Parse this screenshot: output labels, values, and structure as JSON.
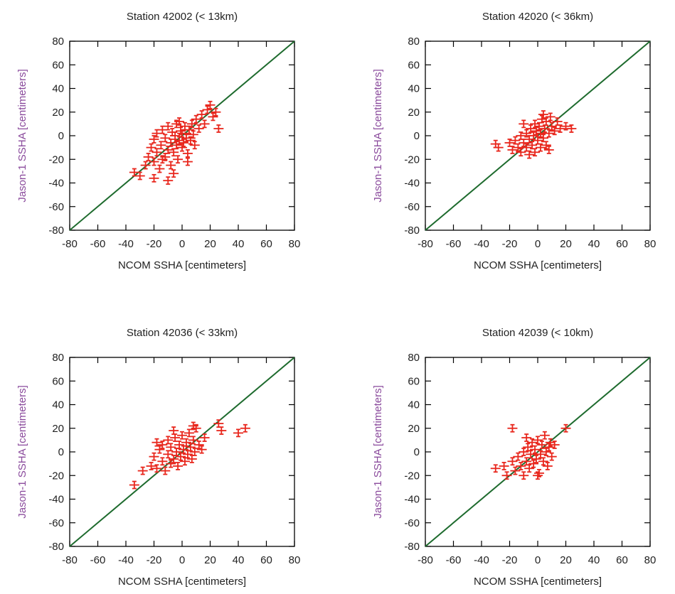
{
  "chart_data": [
    {
      "type": "scatter",
      "title": "Station 42002 (< 13km)",
      "xlabel": "NCOM SSHA [centimeters]",
      "ylabel": "Jason-1 SSHA [centimeters]",
      "xlim": [
        -80,
        80
      ],
      "ylim": [
        -80,
        80
      ],
      "xticks": [
        "-80",
        "-60",
        "-40",
        "-20",
        "0",
        "20",
        "40",
        "60",
        "80"
      ],
      "yticks": [
        "-80",
        "-60",
        "-40",
        "-20",
        "0",
        "20",
        "40",
        "60",
        "80"
      ],
      "grid": false,
      "marker": "error-bar-cross",
      "point_color": "#e8261c",
      "line_color": "#1e6b2e",
      "reference_line": {
        "from": [
          -80,
          -80
        ],
        "to": [
          80,
          80
        ]
      },
      "points": [
        {
          "x": -34,
          "y": -31
        },
        {
          "x": -30,
          "y": -34
        },
        {
          "x": -26,
          "y": -25
        },
        {
          "x": -24,
          "y": -18
        },
        {
          "x": -22,
          "y": -10
        },
        {
          "x": -20,
          "y": -22
        },
        {
          "x": -20,
          "y": -3
        },
        {
          "x": -18,
          "y": -14
        },
        {
          "x": -18,
          "y": 2
        },
        {
          "x": -16,
          "y": -28
        },
        {
          "x": -15,
          "y": -8
        },
        {
          "x": -14,
          "y": 5
        },
        {
          "x": -12,
          "y": -18
        },
        {
          "x": -12,
          "y": -2
        },
        {
          "x": -10,
          "y": -12
        },
        {
          "x": -10,
          "y": 8
        },
        {
          "x": -8,
          "y": -6
        },
        {
          "x": -8,
          "y": -25
        },
        {
          "x": -7,
          "y": 3
        },
        {
          "x": -6,
          "y": -14
        },
        {
          "x": -5,
          "y": 0
        },
        {
          "x": -4,
          "y": -8
        },
        {
          "x": -4,
          "y": 10
        },
        {
          "x": -3,
          "y": -20
        },
        {
          "x": -2,
          "y": -4
        },
        {
          "x": -1,
          "y": 4
        },
        {
          "x": 0,
          "y": -10
        },
        {
          "x": 0,
          "y": 2
        },
        {
          "x": 1,
          "y": -6
        },
        {
          "x": 2,
          "y": 8
        },
        {
          "x": 3,
          "y": -2
        },
        {
          "x": 4,
          "y": -15
        },
        {
          "x": 5,
          "y": 5
        },
        {
          "x": 6,
          "y": -4
        },
        {
          "x": 7,
          "y": 10
        },
        {
          "x": 8,
          "y": 1
        },
        {
          "x": 9,
          "y": -8
        },
        {
          "x": 10,
          "y": 14
        },
        {
          "x": 12,
          "y": 6
        },
        {
          "x": 14,
          "y": 18
        },
        {
          "x": 16,
          "y": 10
        },
        {
          "x": 18,
          "y": 22
        },
        {
          "x": 20,
          "y": 26
        },
        {
          "x": 22,
          "y": 16
        },
        {
          "x": 24,
          "y": 20
        },
        {
          "x": 26,
          "y": 6
        },
        {
          "x": -10,
          "y": -38
        },
        {
          "x": -20,
          "y": -36
        },
        {
          "x": -6,
          "y": -32
        },
        {
          "x": 4,
          "y": -22
        },
        {
          "x": -2,
          "y": 12
        },
        {
          "x": -14,
          "y": -20
        }
      ]
    },
    {
      "type": "scatter",
      "title": "Station 42020 (< 36km)",
      "xlabel": "NCOM SSHA [centimeters]",
      "ylabel": "Jason-1 SSHA [centimeters]",
      "xlim": [
        -80,
        80
      ],
      "ylim": [
        -80,
        80
      ],
      "xticks": [
        "-80",
        "-60",
        "-40",
        "-20",
        "0",
        "20",
        "40",
        "60",
        "80"
      ],
      "yticks": [
        "-80",
        "-60",
        "-40",
        "-20",
        "0",
        "20",
        "40",
        "60",
        "80"
      ],
      "grid": false,
      "marker": "error-bar-cross",
      "point_color": "#e8261c",
      "line_color": "#1e6b2e",
      "reference_line": {
        "from": [
          -80,
          -80
        ],
        "to": [
          80,
          80
        ]
      },
      "points": [
        {
          "x": -30,
          "y": -7
        },
        {
          "x": -28,
          "y": -10
        },
        {
          "x": -20,
          "y": -6
        },
        {
          "x": -18,
          "y": -12
        },
        {
          "x": -16,
          "y": -4
        },
        {
          "x": -14,
          "y": -10
        },
        {
          "x": -12,
          "y": 0
        },
        {
          "x": -12,
          "y": -14
        },
        {
          "x": -10,
          "y": -6
        },
        {
          "x": -8,
          "y": 2
        },
        {
          "x": -8,
          "y": -10
        },
        {
          "x": -6,
          "y": -3
        },
        {
          "x": -5,
          "y": 6
        },
        {
          "x": -4,
          "y": -8
        },
        {
          "x": -3,
          "y": 0
        },
        {
          "x": -2,
          "y": 10
        },
        {
          "x": -2,
          "y": -14
        },
        {
          "x": -1,
          "y": 4
        },
        {
          "x": 0,
          "y": -4
        },
        {
          "x": 1,
          "y": 8
        },
        {
          "x": 2,
          "y": -10
        },
        {
          "x": 2,
          "y": 2
        },
        {
          "x": 3,
          "y": 14
        },
        {
          "x": 4,
          "y": -2
        },
        {
          "x": 5,
          "y": 6
        },
        {
          "x": 6,
          "y": -8
        },
        {
          "x": 6,
          "y": 12
        },
        {
          "x": 8,
          "y": 2
        },
        {
          "x": 9,
          "y": 16
        },
        {
          "x": 10,
          "y": 8
        },
        {
          "x": 12,
          "y": 4
        },
        {
          "x": 14,
          "y": 12
        },
        {
          "x": 16,
          "y": 6
        },
        {
          "x": 20,
          "y": 8
        },
        {
          "x": 24,
          "y": 6
        },
        {
          "x": -10,
          "y": 10
        },
        {
          "x": 4,
          "y": 18
        },
        {
          "x": -6,
          "y": -16
        },
        {
          "x": 8,
          "y": -12
        }
      ]
    },
    {
      "type": "scatter",
      "title": "Station 42036 (< 33km)",
      "xlabel": "NCOM SSHA [centimeters]",
      "ylabel": "Jason-1 SSHA [centimeters]",
      "xlim": [
        -80,
        80
      ],
      "ylim": [
        -80,
        80
      ],
      "xticks": [
        "-80",
        "-60",
        "-40",
        "-20",
        "0",
        "20",
        "40",
        "60",
        "80"
      ],
      "yticks": [
        "-80",
        "-60",
        "-40",
        "-20",
        "0",
        "20",
        "40",
        "60",
        "80"
      ],
      "grid": false,
      "marker": "error-bar-cross",
      "point_color": "#e8261c",
      "line_color": "#1e6b2e",
      "reference_line": {
        "from": [
          -80,
          -80
        ],
        "to": [
          80,
          80
        ]
      },
      "points": [
        {
          "x": -34,
          "y": -28
        },
        {
          "x": -28,
          "y": -16
        },
        {
          "x": -22,
          "y": -12
        },
        {
          "x": -20,
          "y": -4
        },
        {
          "x": -18,
          "y": -14
        },
        {
          "x": -16,
          "y": 2
        },
        {
          "x": -14,
          "y": -8
        },
        {
          "x": -14,
          "y": 6
        },
        {
          "x": -12,
          "y": -16
        },
        {
          "x": -10,
          "y": -2
        },
        {
          "x": -10,
          "y": 10
        },
        {
          "x": -8,
          "y": -10
        },
        {
          "x": -8,
          "y": 4
        },
        {
          "x": -6,
          "y": -6
        },
        {
          "x": -5,
          "y": 12
        },
        {
          "x": -4,
          "y": 0
        },
        {
          "x": -3,
          "y": -12
        },
        {
          "x": -2,
          "y": 6
        },
        {
          "x": -1,
          "y": -4
        },
        {
          "x": 0,
          "y": 14
        },
        {
          "x": 1,
          "y": 2
        },
        {
          "x": 2,
          "y": -8
        },
        {
          "x": 3,
          "y": 8
        },
        {
          "x": 4,
          "y": -2
        },
        {
          "x": 5,
          "y": 16
        },
        {
          "x": 6,
          "y": 4
        },
        {
          "x": 7,
          "y": -6
        },
        {
          "x": 8,
          "y": 10
        },
        {
          "x": 9,
          "y": 0
        },
        {
          "x": 10,
          "y": 20
        },
        {
          "x": 12,
          "y": 6
        },
        {
          "x": 14,
          "y": 2
        },
        {
          "x": 16,
          "y": 12
        },
        {
          "x": 26,
          "y": 24
        },
        {
          "x": 28,
          "y": 18
        },
        {
          "x": 40,
          "y": 16
        },
        {
          "x": 45,
          "y": 20
        },
        {
          "x": -6,
          "y": 18
        },
        {
          "x": 8,
          "y": 22
        },
        {
          "x": -18,
          "y": 8
        }
      ]
    },
    {
      "type": "scatter",
      "title": "Station 42039 (< 10km)",
      "xlabel": "NCOM SSHA [centimeters]",
      "ylabel": "Jason-1 SSHA [centimeters]",
      "xlim": [
        -80,
        80
      ],
      "ylim": [
        -80,
        80
      ],
      "xticks": [
        "-80",
        "-60",
        "-40",
        "-20",
        "0",
        "20",
        "40",
        "60",
        "80"
      ],
      "yticks": [
        "-80",
        "-60",
        "-40",
        "-20",
        "0",
        "20",
        "40",
        "60",
        "80"
      ],
      "grid": false,
      "marker": "error-bar-cross",
      "point_color": "#e8261c",
      "line_color": "#1e6b2e",
      "reference_line": {
        "from": [
          -80,
          -80
        ],
        "to": [
          80,
          80
        ]
      },
      "points": [
        {
          "x": -30,
          "y": -14
        },
        {
          "x": -24,
          "y": -12
        },
        {
          "x": -22,
          "y": -20
        },
        {
          "x": -18,
          "y": -8
        },
        {
          "x": -18,
          "y": 20
        },
        {
          "x": -16,
          "y": -16
        },
        {
          "x": -14,
          "y": -4
        },
        {
          "x": -12,
          "y": -12
        },
        {
          "x": -10,
          "y": 0
        },
        {
          "x": -10,
          "y": -20
        },
        {
          "x": -8,
          "y": -8
        },
        {
          "x": -7,
          "y": 4
        },
        {
          "x": -6,
          "y": -14
        },
        {
          "x": -5,
          "y": -2
        },
        {
          "x": -4,
          "y": 8
        },
        {
          "x": -3,
          "y": -10
        },
        {
          "x": -2,
          "y": 2
        },
        {
          "x": -1,
          "y": -6
        },
        {
          "x": 0,
          "y": 10
        },
        {
          "x": 1,
          "y": -18
        },
        {
          "x": 2,
          "y": -2
        },
        {
          "x": 3,
          "y": 6
        },
        {
          "x": 4,
          "y": -8
        },
        {
          "x": 5,
          "y": 14
        },
        {
          "x": 6,
          "y": 0
        },
        {
          "x": 7,
          "y": -12
        },
        {
          "x": 8,
          "y": 4
        },
        {
          "x": 9,
          "y": 8
        },
        {
          "x": 10,
          "y": -4
        },
        {
          "x": 20,
          "y": 20
        },
        {
          "x": 12,
          "y": 6
        },
        {
          "x": -8,
          "y": 12
        },
        {
          "x": 0,
          "y": -20
        }
      ]
    }
  ]
}
